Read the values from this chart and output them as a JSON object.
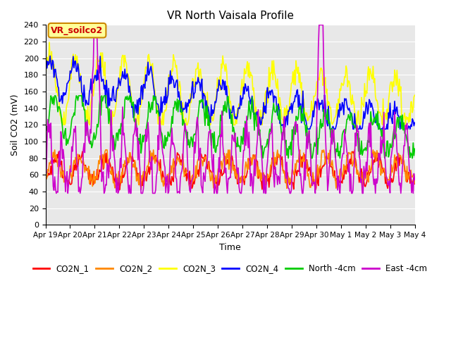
{
  "title": "VR North Vaisala Profile",
  "xlabel": "Time",
  "ylabel": "Soil CO2 (mV)",
  "ylim": [
    0,
    240
  ],
  "yticks": [
    0,
    20,
    40,
    60,
    80,
    100,
    120,
    140,
    160,
    180,
    200,
    220,
    240
  ],
  "xtick_labels": [
    "Apr 19",
    "Apr 20",
    "Apr 21",
    "Apr 22",
    "Apr 23",
    "Apr 24",
    "Apr 25",
    "Apr 26",
    "Apr 27",
    "Apr 28",
    "Apr 29",
    "Apr 30",
    "May 1",
    "May 2",
    "May 3",
    "May 4"
  ],
  "legend_labels": [
    "CO2N_1",
    "CO2N_2",
    "CO2N_3",
    "CO2N_4",
    "North -4cm",
    "East -4cm"
  ],
  "colors": {
    "CO2N_1": "#ff0000",
    "CO2N_2": "#ff8800",
    "CO2N_3": "#ffff00",
    "CO2N_4": "#0000ff",
    "North -4cm": "#00cc00",
    "East -4cm": "#cc00cc"
  },
  "annotation_text": "VR_soilco2",
  "annotation_color": "#cc0000",
  "annotation_bg": "#ffff99",
  "annotation_border": "#cc8800",
  "plot_bg": "#e8e8e8",
  "n_points": 480,
  "days": 15
}
